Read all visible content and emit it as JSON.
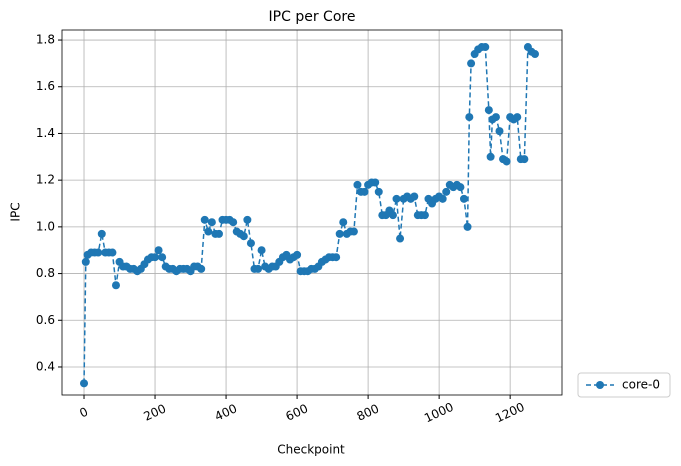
{
  "chart_data": {
    "type": "line",
    "title": "IPC per Core",
    "x_label": "Checkpoint",
    "y_label": "IPC",
    "x": [
      0,
      5,
      10,
      20,
      30,
      40,
      50,
      60,
      70,
      80,
      90,
      100,
      110,
      120,
      130,
      140,
      150,
      160,
      170,
      180,
      190,
      200,
      210,
      220,
      230,
      240,
      250,
      260,
      270,
      280,
      290,
      300,
      310,
      320,
      330,
      340,
      350,
      360,
      370,
      380,
      390,
      400,
      410,
      420,
      430,
      440,
      450,
      460,
      470,
      480,
      490,
      500,
      510,
      520,
      530,
      540,
      550,
      560,
      570,
      580,
      590,
      600,
      610,
      620,
      630,
      640,
      650,
      660,
      670,
      680,
      690,
      700,
      710,
      720,
      730,
      740,
      750,
      760,
      770,
      780,
      790,
      800,
      810,
      820,
      830,
      840,
      850,
      860,
      870,
      880,
      890,
      900,
      910,
      920,
      930,
      940,
      950,
      960,
      970,
      980,
      990,
      1000,
      1010,
      1020,
      1030,
      1040,
      1050,
      1060,
      1070,
      1080,
      1085,
      1090,
      1100,
      1110,
      1120,
      1130,
      1140,
      1145,
      1150,
      1160,
      1170,
      1180,
      1190,
      1200,
      1210,
      1220,
      1230,
      1240,
      1250,
      1260,
      1270
    ],
    "series": [
      {
        "name": "core-0",
        "color": "#1f77b4",
        "line_style": "dashed",
        "marker": "circle",
        "values": [
          0.33,
          0.85,
          0.88,
          0.89,
          0.89,
          0.89,
          0.97,
          0.89,
          0.89,
          0.89,
          0.75,
          0.85,
          0.83,
          0.83,
          0.82,
          0.82,
          0.81,
          0.82,
          0.84,
          0.86,
          0.87,
          0.87,
          0.9,
          0.87,
          0.83,
          0.82,
          0.82,
          0.81,
          0.82,
          0.82,
          0.82,
          0.81,
          0.83,
          0.83,
          0.82,
          1.03,
          0.98,
          1.02,
          0.97,
          0.97,
          1.03,
          1.03,
          1.03,
          1.02,
          0.98,
          0.97,
          0.96,
          1.03,
          0.93,
          0.82,
          0.82,
          0.9,
          0.83,
          0.82,
          0.83,
          0.83,
          0.85,
          0.87,
          0.88,
          0.86,
          0.87,
          0.88,
          0.81,
          0.81,
          0.81,
          0.82,
          0.82,
          0.83,
          0.85,
          0.86,
          0.87,
          0.87,
          0.87,
          0.97,
          1.02,
          0.97,
          0.98,
          0.98,
          1.18,
          1.15,
          1.15,
          1.18,
          1.19,
          1.19,
          1.15,
          1.05,
          1.05,
          1.07,
          1.05,
          1.12,
          0.95,
          1.12,
          1.13,
          1.12,
          1.13,
          1.05,
          1.05,
          1.05,
          1.12,
          1.1,
          1.12,
          1.13,
          1.12,
          1.15,
          1.18,
          1.17,
          1.18,
          1.17,
          1.12,
          1.0,
          1.47,
          1.7,
          1.74,
          1.76,
          1.77,
          1.77,
          1.5,
          1.3,
          1.46,
          1.47,
          1.41,
          1.29,
          1.28,
          1.47,
          1.46,
          1.47,
          1.29,
          1.29,
          1.77,
          1.75,
          1.74
        ]
      }
    ],
    "xlim": [
      -62,
      1346
    ],
    "ylim": [
      0.28,
      1.843
    ],
    "xticks": [
      0,
      200,
      400,
      600,
      800,
      1000,
      1200
    ],
    "yticks": [
      0.4,
      0.6,
      0.8,
      1.0,
      1.2,
      1.4,
      1.6,
      1.8
    ],
    "grid": true,
    "legend": "outside lower right"
  }
}
